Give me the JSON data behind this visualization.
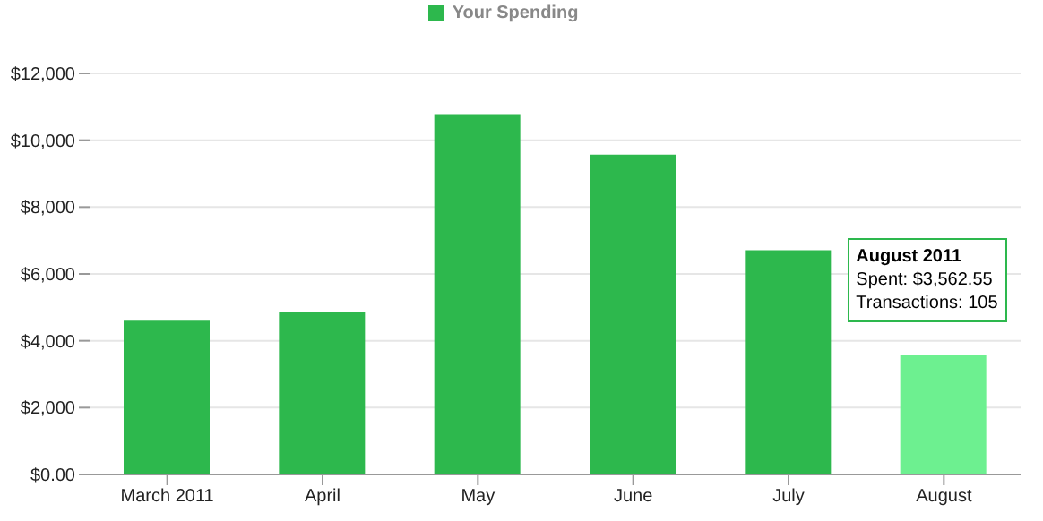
{
  "chart_data": {
    "type": "bar",
    "categories": [
      "March 2011",
      "April",
      "May",
      "June",
      "July",
      "August"
    ],
    "series": [
      {
        "name": "Your Spending",
        "color": "#2db84d",
        "colors": [
          "#2db84d",
          "#2db84d",
          "#2db84d",
          "#2db84d",
          "#2db84d",
          "#6df090"
        ],
        "values": [
          4600,
          4860,
          10780,
          9570,
          6710,
          3562.55
        ]
      }
    ],
    "ylim": [
      0,
      12000
    ],
    "yticks": [
      {
        "value": 0,
        "label": "$0.00"
      },
      {
        "value": 2000,
        "label": "$2,000"
      },
      {
        "value": 4000,
        "label": "$4,000"
      },
      {
        "value": 6000,
        "label": "$6,000"
      },
      {
        "value": 8000,
        "label": "$8,000"
      },
      {
        "value": 10000,
        "label": "$10,000"
      },
      {
        "value": 12000,
        "label": "$12,000"
      }
    ],
    "grid": "y",
    "legend": "top",
    "annotations": [
      {
        "text": "August 2011\nSpent: $3,562.55\nTransactions: 105",
        "x": "August",
        "y": 3562.55
      }
    ]
  }
}
